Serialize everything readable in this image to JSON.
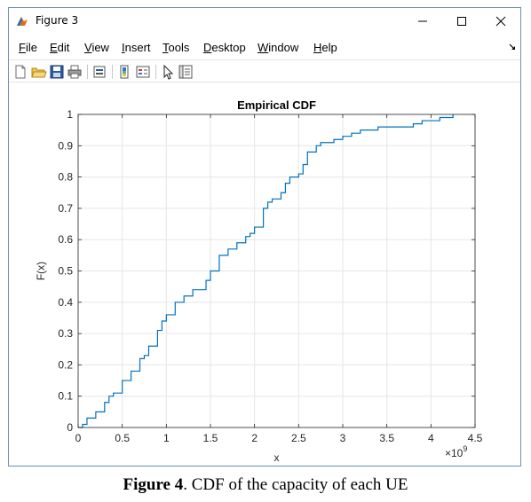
{
  "window": {
    "title": "Figure 3",
    "controls": {
      "minimize": "minimize",
      "maximize": "maximize",
      "close": "close"
    }
  },
  "menu": [
    {
      "mnemonic": "F",
      "rest": "ile"
    },
    {
      "mnemonic": "E",
      "rest": "dit"
    },
    {
      "mnemonic": "V",
      "rest": "iew"
    },
    {
      "mnemonic": "I",
      "rest": "nsert"
    },
    {
      "mnemonic": "T",
      "rest": "ools"
    },
    {
      "mnemonic": "D",
      "rest": "esktop"
    },
    {
      "mnemonic": "W",
      "rest": "indow"
    },
    {
      "mnemonic": "H",
      "rest": "elp"
    }
  ],
  "toolbar": {
    "icons": [
      "new-figure-icon",
      "open-file-icon",
      "save-icon",
      "print-icon",
      "link-plot-icon",
      "insert-colorbar-icon",
      "insert-legend-icon",
      "edit-plot-icon",
      "property-inspector-icon"
    ]
  },
  "chart_data": {
    "type": "line",
    "step": true,
    "title": "Empirical CDF",
    "xlabel": "x",
    "ylabel": "F(x)",
    "x_exponent_label": "×10",
    "x_exponent_power": "9",
    "xlim": [
      0,
      4.5
    ],
    "ylim": [
      0,
      1
    ],
    "grid": true,
    "x_ticks": [
      "0",
      "0.5",
      "1",
      "1.5",
      "2",
      "2.5",
      "3",
      "3.5",
      "4",
      "4.5"
    ],
    "y_ticks": [
      "0",
      "0.1",
      "0.2",
      "0.3",
      "0.4",
      "0.5",
      "0.6",
      "0.7",
      "0.8",
      "0.9",
      "1"
    ],
    "color": "#0072bd",
    "series": [
      {
        "x": [
          0.0,
          0.05,
          0.1,
          0.2,
          0.3,
          0.35,
          0.4,
          0.5,
          0.6,
          0.7,
          0.75,
          0.8,
          0.9,
          0.95,
          1.0,
          1.1,
          1.2,
          1.3,
          1.45,
          1.5,
          1.6,
          1.7,
          1.8,
          1.9,
          1.95,
          2.0,
          2.1,
          2.15,
          2.2,
          2.3,
          2.35,
          2.4,
          2.45,
          2.5,
          2.55,
          2.6,
          2.7,
          2.75,
          2.8,
          2.9,
          3.0,
          3.1,
          3.2,
          3.3,
          3.4,
          3.6,
          3.8,
          3.9,
          4.0,
          4.1,
          4.2,
          4.25
        ],
        "y": [
          0.0,
          0.01,
          0.03,
          0.05,
          0.08,
          0.1,
          0.11,
          0.15,
          0.18,
          0.22,
          0.23,
          0.26,
          0.31,
          0.34,
          0.36,
          0.4,
          0.42,
          0.44,
          0.47,
          0.5,
          0.55,
          0.57,
          0.59,
          0.61,
          0.62,
          0.64,
          0.7,
          0.72,
          0.73,
          0.75,
          0.78,
          0.8,
          0.8,
          0.81,
          0.84,
          0.88,
          0.9,
          0.91,
          0.91,
          0.92,
          0.93,
          0.94,
          0.95,
          0.95,
          0.96,
          0.96,
          0.97,
          0.98,
          0.98,
          0.99,
          0.99,
          1.0
        ]
      }
    ]
  },
  "caption": {
    "bold": "Figure 4",
    "text": ". CDF of the capacity of each UE"
  }
}
